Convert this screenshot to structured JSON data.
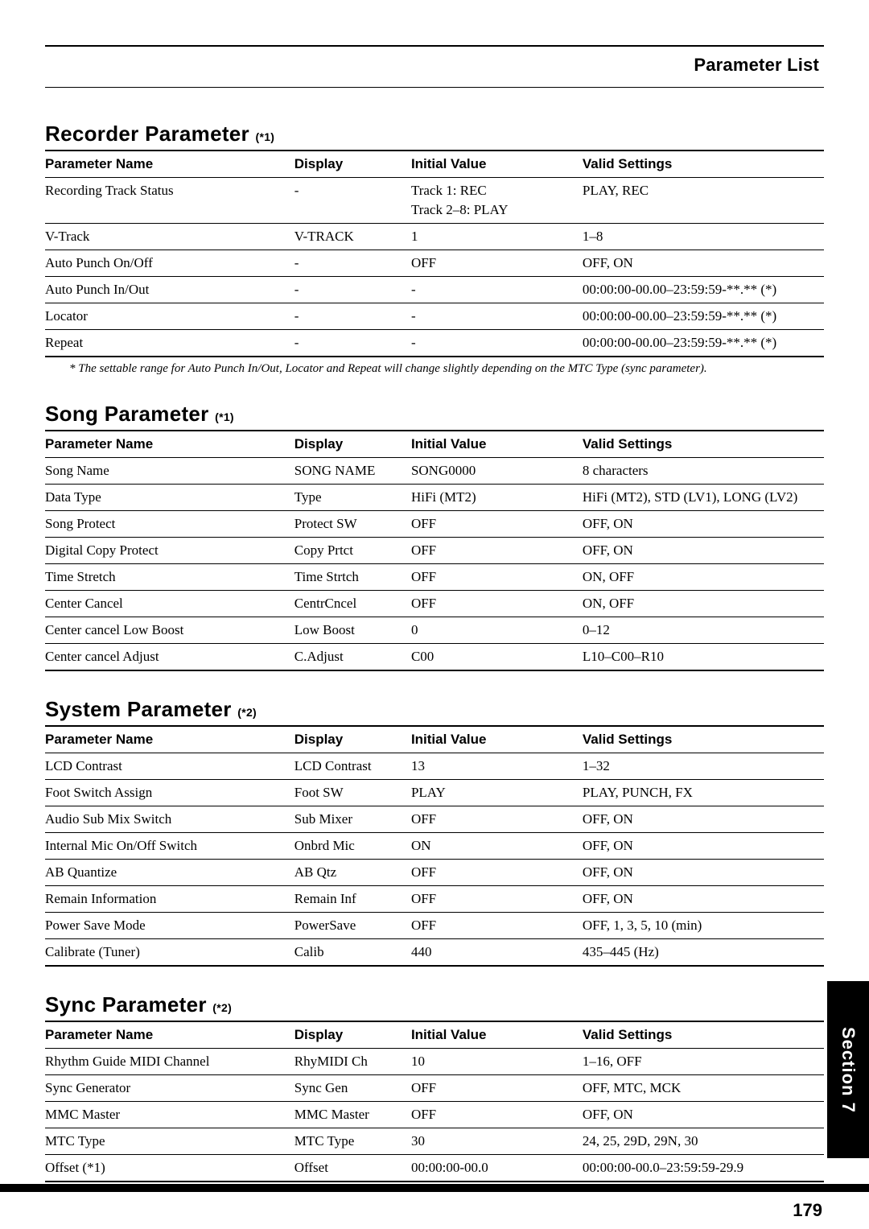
{
  "header": {
    "title": "Parameter List"
  },
  "columns": {
    "name": "Parameter Name",
    "display": "Display",
    "initial": "Initial Value",
    "valid": "Valid Settings"
  },
  "recorder": {
    "title": "Recorder Parameter",
    "sup": "(*1)",
    "rows": [
      {
        "name": "Recording Track Status",
        "display": "-",
        "initial": "Track 1: REC",
        "valid": "PLAY, REC",
        "hasSub": true,
        "sub": {
          "name": "",
          "display": "",
          "initial": "Track 2–8: PLAY",
          "valid": ""
        }
      },
      {
        "name": "V-Track",
        "display": "V-TRACK",
        "initial": "1",
        "valid": "1–8"
      },
      {
        "name": "Auto Punch On/Off",
        "display": "-",
        "initial": "OFF",
        "valid": "OFF, ON"
      },
      {
        "name": "Auto Punch In/Out",
        "display": "-",
        "initial": "-",
        "valid": "00:00:00-00.00–23:59:59-**.** (*)"
      },
      {
        "name": "Locator",
        "display": "-",
        "initial": "-",
        "valid": "00:00:00-00.00–23:59:59-**.** (*)"
      },
      {
        "name": "Repeat",
        "display": "-",
        "initial": "-",
        "valid": "00:00:00-00.00–23:59:59-**.** (*)"
      }
    ],
    "footnote": "*   The settable range for Auto Punch In/Out, Locator and Repeat will change slightly depending on the MTC Type (sync parameter)."
  },
  "song": {
    "title": "Song Parameter",
    "sup": "(*1)",
    "rows": [
      {
        "name": "Song Name",
        "display": "SONG NAME",
        "initial": "SONG0000",
        "valid": "8 characters"
      },
      {
        "name": "Data Type",
        "display": "Type",
        "initial": "HiFi (MT2)",
        "valid": "HiFi (MT2), STD (LV1), LONG (LV2)"
      },
      {
        "name": "Song Protect",
        "display": "Protect SW",
        "initial": "OFF",
        "valid": "OFF, ON"
      },
      {
        "name": "Digital Copy Protect",
        "display": "Copy Prtct",
        "initial": "OFF",
        "valid": "OFF, ON"
      },
      {
        "name": "Time Stretch",
        "display": "Time Strtch",
        "initial": "OFF",
        "valid": "ON, OFF"
      },
      {
        "name": "Center Cancel",
        "display": "CentrCncel",
        "initial": "OFF",
        "valid": "ON, OFF"
      },
      {
        "name": "Center cancel Low Boost",
        "display": "Low Boost",
        "initial": "0",
        "valid": "0–12"
      },
      {
        "name": "Center cancel Adjust",
        "display": "C.Adjust",
        "initial": "C00",
        "valid": "L10–C00–R10"
      }
    ]
  },
  "system": {
    "title": "System Parameter",
    "sup": "(*2)",
    "rows": [
      {
        "name": "LCD Contrast",
        "display": "LCD Contrast",
        "initial": "13",
        "valid": "1–32"
      },
      {
        "name": "Foot Switch Assign",
        "display": "Foot SW",
        "initial": "PLAY",
        "valid": "PLAY, PUNCH, FX"
      },
      {
        "name": "Audio Sub Mix Switch",
        "display": "Sub Mixer",
        "initial": "OFF",
        "valid": "OFF, ON"
      },
      {
        "name": "Internal Mic On/Off Switch",
        "display": "Onbrd Mic",
        "initial": "ON",
        "valid": "OFF, ON"
      },
      {
        "name": "AB Quantize",
        "display": "AB Qtz",
        "initial": "OFF",
        "valid": "OFF, ON"
      },
      {
        "name": "Remain Information",
        "display": "Remain Inf",
        "initial": "OFF",
        "valid": "OFF, ON"
      },
      {
        "name": "Power Save Mode",
        "display": "PowerSave",
        "initial": "OFF",
        "valid": "OFF, 1, 3, 5, 10 (min)"
      },
      {
        "name": "Calibrate (Tuner)",
        "display": "Calib",
        "initial": "440",
        "valid": "435–445 (Hz)"
      }
    ]
  },
  "sync": {
    "title": "Sync Parameter",
    "sup": "(*2)",
    "rows": [
      {
        "name": "Rhythm Guide MIDI Channel",
        "display": "RhyMIDI Ch",
        "initial": "10",
        "valid": "1–16, OFF"
      },
      {
        "name": "Sync Generator",
        "display": "Sync Gen",
        "initial": "OFF",
        "valid": "OFF, MTC, MCK"
      },
      {
        "name": "MMC Master",
        "display": "MMC Master",
        "initial": "OFF",
        "valid": "OFF, ON"
      },
      {
        "name": "MTC Type",
        "display": "MTC Type",
        "initial": "30",
        "valid": "24, 25, 29D, 29N, 30"
      },
      {
        "name": "Offset (*1)",
        "display": "Offset",
        "initial": "00:00:00-00.0",
        "valid": "00:00:00-00.0–23:59:59-29.9"
      }
    ]
  },
  "tab": "Section 7",
  "pageNumber": "179"
}
